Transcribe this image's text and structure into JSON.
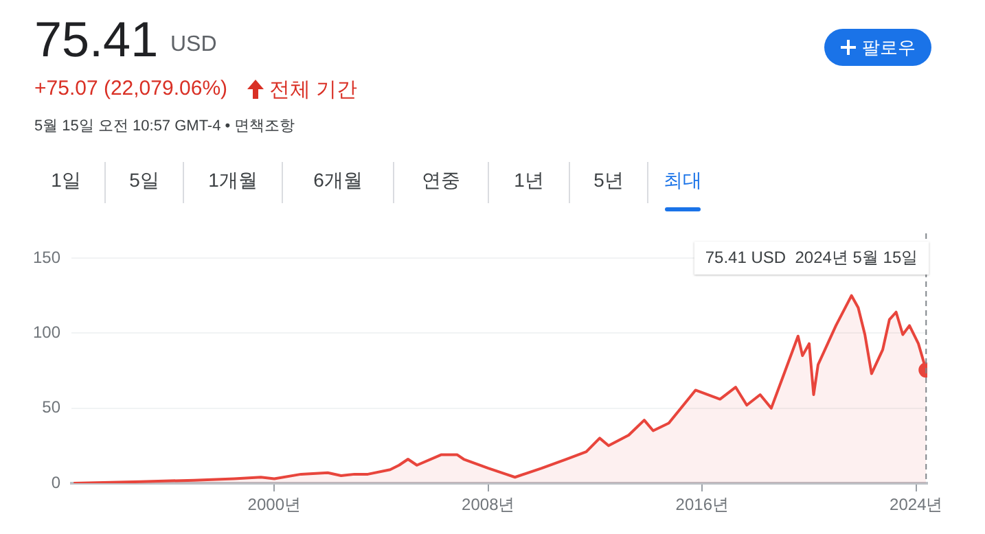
{
  "chart_data": {
    "type": "area",
    "title": "75.41",
    "annotations": [
      "USD",
      "+75.07 (22,079.06%)",
      "전체 기간",
      "5월 15일 오전 10:57 GMT-4 • 면책조항",
      "팔로우",
      "1일",
      "5일",
      "1개월",
      "6개월",
      "연중",
      "1년",
      "5년",
      "최대",
      "75.41 USD  2024년 5월 15일"
    ],
    "x": [
      "1992-07",
      "1995-01",
      "1997-01",
      "1998-07",
      "1999-07",
      "2000-01",
      "2001-01",
      "2002-01",
      "2002-07",
      "2003-01",
      "2003-07",
      "2004-05",
      "2004-09",
      "2005-01",
      "2005-05",
      "2006-04",
      "2006-11",
      "2007-02",
      "2008-01",
      "2008-09",
      "2009-01",
      "2010-01",
      "2010-12",
      "2011-09",
      "2012-03",
      "2012-07",
      "2013-04",
      "2013-11",
      "2014-03",
      "2014-10",
      "2015-10",
      "2016-09",
      "2017-04",
      "2017-09",
      "2018-03",
      "2018-08",
      "2019-01",
      "2019-08",
      "2019-10",
      "2020-01",
      "2020-03",
      "2020-05",
      "2021-01",
      "2021-08",
      "2021-11",
      "2022-02",
      "2022-05",
      "2022-10",
      "2023-01",
      "2023-04",
      "2023-07",
      "2023-10",
      "2024-02",
      "2024-05-15"
    ],
    "series": [
      {
        "color": "#e8453c",
        "values": [
          0,
          1,
          2,
          3,
          4,
          3,
          6,
          7,
          5,
          6,
          6,
          9,
          12,
          16,
          12,
          19,
          19,
          16,
          10,
          6,
          4,
          10,
          16,
          21,
          30,
          25,
          32,
          42,
          35,
          40,
          62,
          56,
          64,
          52,
          59,
          50,
          70,
          98,
          85,
          93,
          59,
          79,
          105,
          125,
          117,
          99,
          73,
          89,
          109,
          114,
          99,
          105,
          93,
          75.41
        ]
      }
    ],
    "xlim": [
      "1992-06",
      "2024-06"
    ],
    "xticks": [
      {
        "value": "2000",
        "label": "2000년"
      },
      {
        "value": "2008",
        "label": "2008년"
      },
      {
        "value": "2016",
        "label": "2016년"
      },
      {
        "value": "2024",
        "label": "2024년"
      }
    ],
    "ylim": [
      0,
      150
    ],
    "yticks": [
      0,
      50,
      100,
      150
    ],
    "ref_lines": [
      {
        "axis": "x",
        "value": "2024-05-15",
        "color": "#80868b",
        "line_style": "dashed"
      }
    ],
    "grid": "y",
    "legend": false,
    "marker": "none",
    "line_style": "solid"
  }
}
